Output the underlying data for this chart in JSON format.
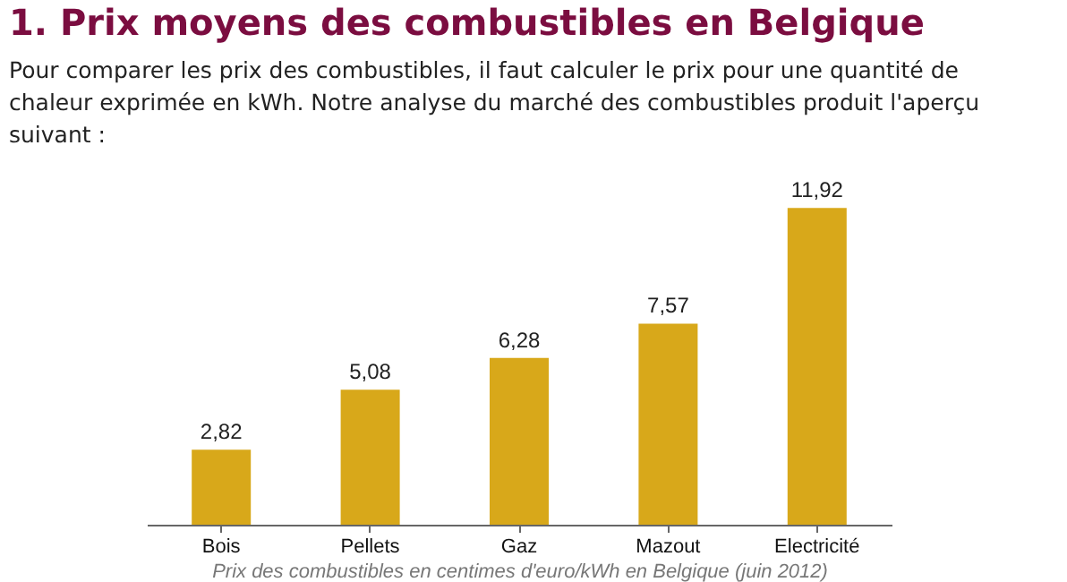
{
  "chart_data": {
    "type": "bar",
    "title": "1. Prix moyens des combustibles en Belgique",
    "subtitle": "Pour comparer les prix des combustibles, il faut calculer le prix pour une quantité de chaleur exprimée en kWh. Notre analyse du marché des combustibles produit l'aperçu suivant :",
    "categories": [
      "Bois",
      "Pellets",
      "Gaz",
      "Mazout",
      "Electricité"
    ],
    "values": [
      2.82,
      5.08,
      6.28,
      7.57,
      11.92
    ],
    "value_labels": [
      "2,82",
      "5,08",
      "6,28",
      "7,57",
      "11,92"
    ],
    "color": "#d8a81a",
    "annotations": [
      "Prix des combustibles en centimes d'euro/kWh en Belgique (juin 2012)"
    ]
  }
}
